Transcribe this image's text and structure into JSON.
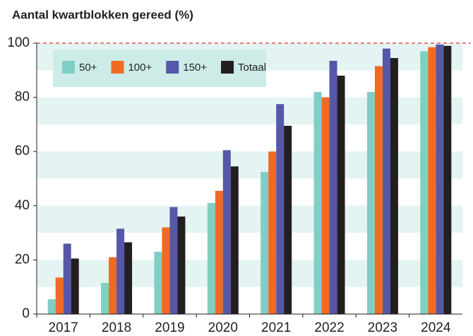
{
  "chart_data": {
    "type": "bar",
    "title": "Aantal kwartblokken gereed (%)",
    "categories": [
      "2017",
      "2018",
      "2019",
      "2020",
      "2021",
      "2022",
      "2023",
      "2024"
    ],
    "series": [
      {
        "name": "50+",
        "color": "#7fcfc4",
        "values": [
          5.5,
          11.5,
          23,
          41,
          52.5,
          82,
          82,
          97
        ]
      },
      {
        "name": "100+",
        "color": "#f26a22",
        "values": [
          13.5,
          21,
          32,
          45.5,
          60,
          80,
          91.5,
          98.5
        ]
      },
      {
        "name": "150+",
        "color": "#5558a8",
        "values": [
          26,
          31.5,
          39.5,
          60.5,
          77.5,
          93.5,
          98,
          99.5
        ]
      },
      {
        "name": "Totaal",
        "color": "#231f20",
        "values": [
          20.5,
          26.5,
          36,
          54.5,
          69.5,
          88,
          94.5,
          99
        ]
      }
    ],
    "ylim": [
      0,
      100
    ],
    "yticks": [
      0,
      20,
      40,
      60,
      80,
      100
    ],
    "grid": true,
    "reference_line": 100,
    "legend": "upper left"
  }
}
